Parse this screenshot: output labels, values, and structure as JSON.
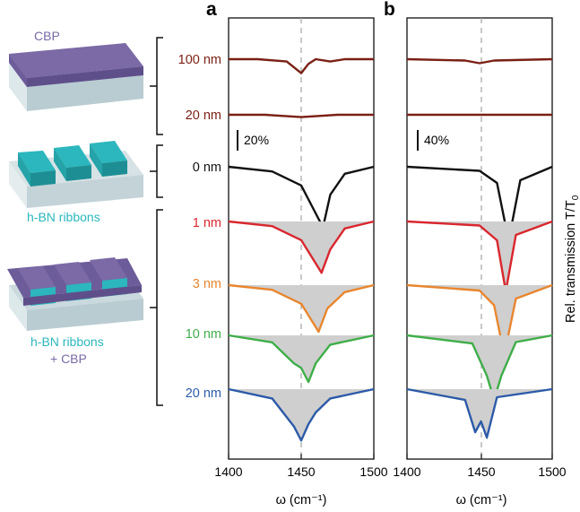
{
  "figure": {
    "schematic": {
      "top_label": "CBP",
      "mid_label": "h-BN ribbons",
      "bottom_label_line1": "h-BN ribbons",
      "bottom_label_line2": "+ CBP"
    },
    "thickness_labels": [
      {
        "text": "100 nm",
        "color": "#7a1f14"
      },
      {
        "text": "20 nm",
        "color": "#7a1f14"
      },
      {
        "text": "0 nm",
        "color": "#111111"
      },
      {
        "text": "1 nm",
        "color": "#d9272e"
      },
      {
        "text": "3 nm",
        "color": "#e8862f"
      },
      {
        "text": "10 nm",
        "color": "#3fae49"
      },
      {
        "text": "20 nm",
        "color": "#2c5aa8"
      }
    ],
    "panel_a": {
      "letter": "a",
      "scale_bar": "20%"
    },
    "panel_b": {
      "letter": "b",
      "scale_bar": "40%"
    },
    "x_axis_label": "ω (cm⁻¹)",
    "y_axis_label": "Rel. transmission T/T",
    "y_axis_subscript": "0",
    "colors": {
      "cbp_purple": "#7b6aa6",
      "hbn_teal": "#2bb7bd",
      "substrate": "#c9d9de",
      "fill_gray": "#cfcfcf"
    }
  },
  "chart_data": [
    {
      "type": "line",
      "panel": "a",
      "xlabel": "ω (cm⁻¹)",
      "xlim": [
        1400,
        1500
      ],
      "xticks": [
        1400,
        1450,
        1500
      ],
      "reference_line_x": 1450,
      "scale_bar": "20%",
      "series": [
        {
          "name": "100 nm",
          "color": "#7a1f14",
          "x": [
            1400,
            1420,
            1440,
            1450,
            1455,
            1460,
            1470,
            1480,
            1500
          ],
          "y": [
            0,
            0,
            -0.01,
            -0.06,
            -0.02,
            0,
            -0.01,
            0,
            0
          ]
        },
        {
          "name": "20 nm",
          "color": "#7a1f14",
          "x": [
            1400,
            1425,
            1450,
            1475,
            1500
          ],
          "y": [
            0,
            0,
            -0.01,
            0,
            0
          ]
        },
        {
          "name": "0 nm",
          "color": "#111111",
          "x": [
            1400,
            1430,
            1450,
            1460,
            1465,
            1470,
            1480,
            1500
          ],
          "y": [
            0,
            -0.02,
            -0.08,
            -0.2,
            -0.26,
            -0.12,
            -0.03,
            0
          ]
        },
        {
          "name": "1 nm",
          "color": "#d9272e",
          "x": [
            1400,
            1430,
            1450,
            1460,
            1464,
            1470,
            1480,
            1500
          ],
          "y": [
            0,
            -0.02,
            -0.08,
            -0.18,
            -0.22,
            -0.12,
            -0.03,
            0
          ]
        },
        {
          "name": "3 nm",
          "color": "#e8862f",
          "x": [
            1400,
            1430,
            1450,
            1458,
            1462,
            1468,
            1480,
            1500
          ],
          "y": [
            0,
            -0.02,
            -0.08,
            -0.16,
            -0.2,
            -0.1,
            -0.03,
            0
          ]
        },
        {
          "name": "10 nm",
          "color": "#3fae49",
          "x": [
            1400,
            1430,
            1445,
            1450,
            1455,
            1460,
            1470,
            1500
          ],
          "y": [
            0,
            -0.03,
            -0.12,
            -0.14,
            -0.2,
            -0.12,
            -0.04,
            0
          ]
        },
        {
          "name": "20 nm",
          "color": "#2c5aa8",
          "x": [
            1400,
            1430,
            1445,
            1450,
            1455,
            1460,
            1470,
            1500
          ],
          "y": [
            0,
            -0.04,
            -0.16,
            -0.22,
            -0.15,
            -0.1,
            -0.04,
            0
          ]
        }
      ]
    },
    {
      "type": "line",
      "panel": "b",
      "xlabel": "ω (cm⁻¹)",
      "xlim": [
        1400,
        1500
      ],
      "xticks": [
        1400,
        1450,
        1500
      ],
      "reference_line_x": 1450,
      "scale_bar": "40%",
      "series": [
        {
          "name": "100 nm",
          "color": "#7a1f14",
          "x": [
            1400,
            1440,
            1450,
            1460,
            1500
          ],
          "y": [
            0,
            -0.01,
            -0.03,
            -0.01,
            0
          ]
        },
        {
          "name": "20 nm",
          "color": "#7a1f14",
          "x": [
            1400,
            1450,
            1500
          ],
          "y": [
            0,
            0,
            0
          ]
        },
        {
          "name": "0 nm",
          "color": "#111111",
          "x": [
            1400,
            1450,
            1462,
            1470,
            1478,
            1500
          ],
          "y": [
            0,
            -0.03,
            -0.12,
            -0.55,
            -0.1,
            0
          ]
        },
        {
          "name": "1 nm",
          "color": "#d9272e",
          "x": [
            1400,
            1450,
            1462,
            1468,
            1475,
            1500
          ],
          "y": [
            0,
            -0.03,
            -0.14,
            -0.52,
            -0.1,
            0
          ]
        },
        {
          "name": "3 nm",
          "color": "#e8862f",
          "x": [
            1400,
            1450,
            1460,
            1467,
            1475,
            1500
          ],
          "y": [
            0,
            -0.04,
            -0.15,
            -0.52,
            -0.1,
            0
          ]
        },
        {
          "name": "10 nm",
          "color": "#3fae49",
          "x": [
            1400,
            1445,
            1455,
            1460,
            1465,
            1475,
            1500
          ],
          "y": [
            0,
            -0.06,
            -0.3,
            -0.48,
            -0.3,
            -0.05,
            0
          ]
        },
        {
          "name": "20 nm",
          "color": "#2c5aa8",
          "x": [
            1400,
            1440,
            1447,
            1451,
            1455,
            1462,
            1500
          ],
          "y": [
            0,
            -0.08,
            -0.32,
            -0.24,
            -0.36,
            -0.06,
            0
          ]
        }
      ]
    }
  ]
}
